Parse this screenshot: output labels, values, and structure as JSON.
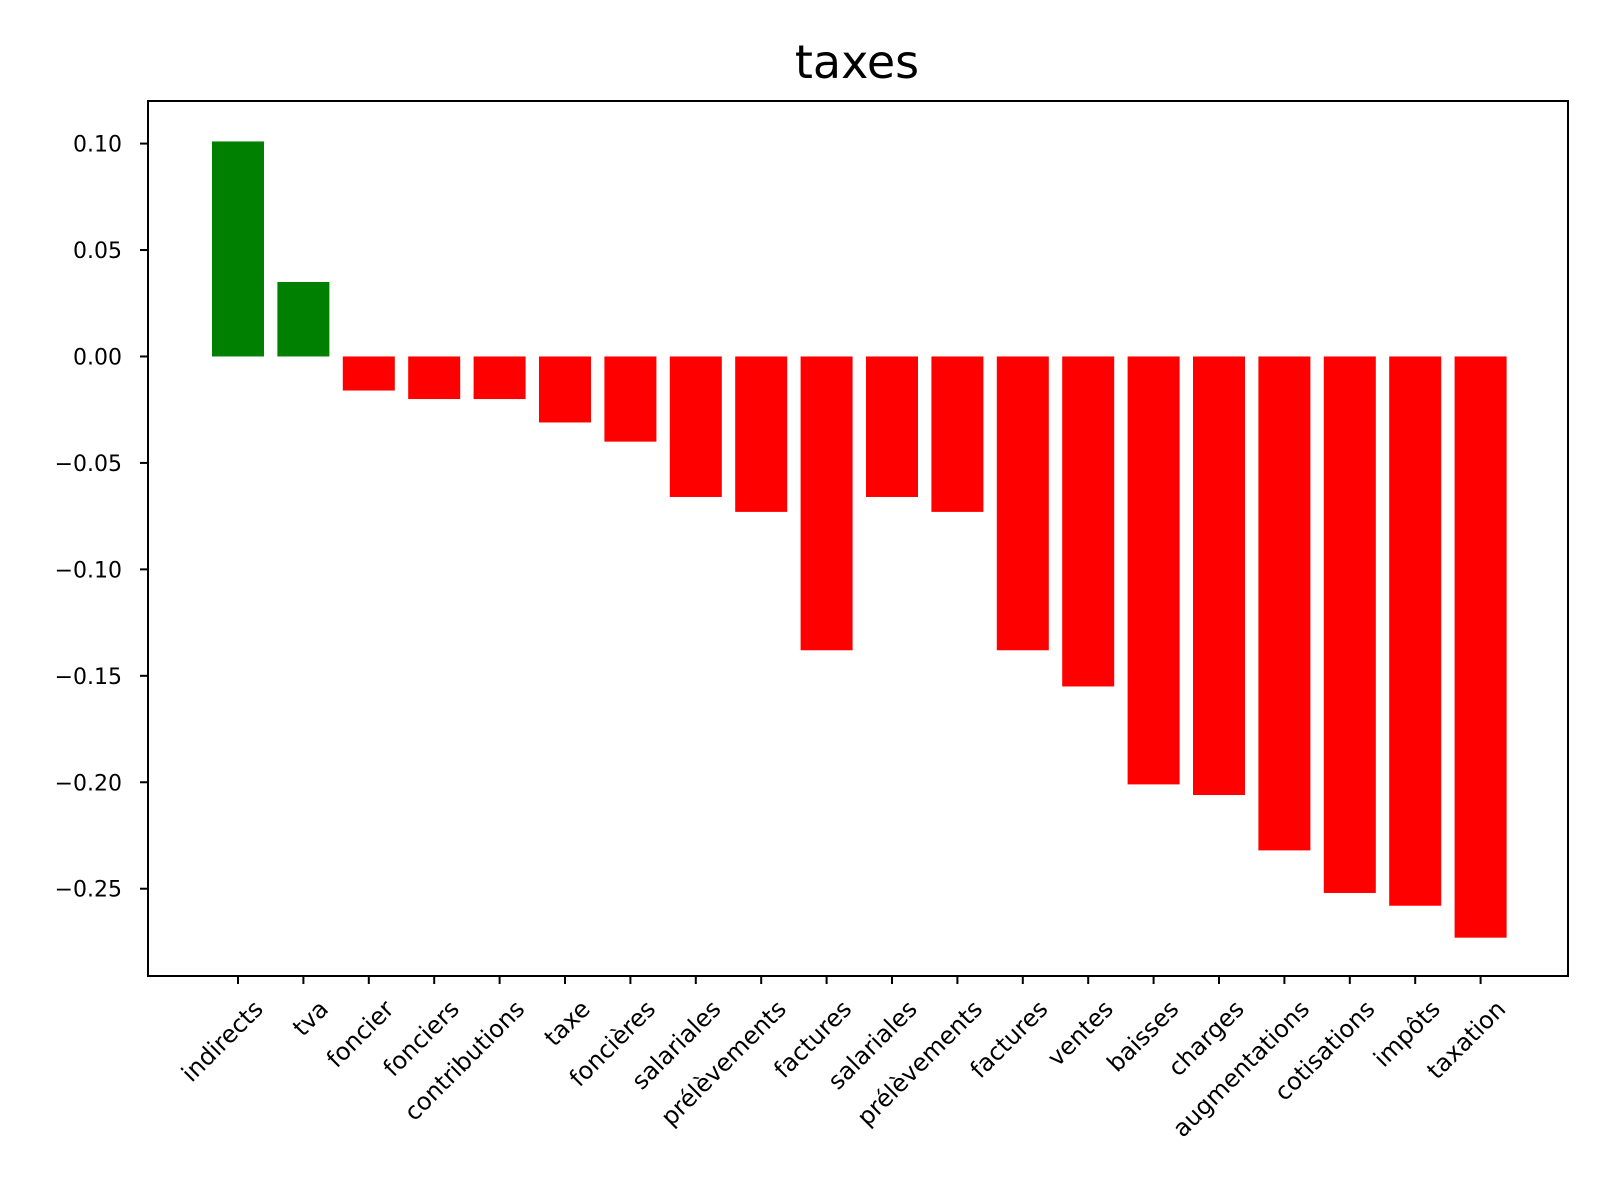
{
  "chart_data": {
    "type": "bar",
    "title": "taxes",
    "xlabel": "",
    "ylabel": "",
    "categories": [
      "indirects",
      "tva",
      "foncier",
      "fonciers",
      "contributions",
      "taxe",
      "foncières",
      "salariales",
      "prélèvements",
      "factures",
      "salariales",
      "prélèvements",
      "factures",
      "ventes",
      "baisses",
      "charges",
      "augmentations",
      "cotisations",
      "impôts",
      "taxation"
    ],
    "values": [
      0.101,
      0.035,
      -0.016,
      -0.02,
      -0.02,
      -0.031,
      -0.04,
      -0.066,
      -0.073,
      -0.138,
      -0.066,
      -0.073,
      -0.138,
      -0.155,
      -0.201,
      -0.206,
      -0.232,
      -0.252,
      -0.258,
      -0.273
    ],
    "ylim": [
      -0.291,
      0.12
    ],
    "yticks": [
      "0.10",
      "0.05",
      "0.00",
      "−0.05",
      "−0.10",
      "−0.15",
      "−0.20",
      "−0.25"
    ],
    "ytick_values": [
      0.1,
      0.05,
      0.0,
      -0.05,
      -0.1,
      -0.15,
      -0.2,
      -0.25
    ],
    "grid": false,
    "legend": "none",
    "colors": {
      "positive": "#008000",
      "negative": "#ff0000",
      "axis": "#000000"
    }
  }
}
